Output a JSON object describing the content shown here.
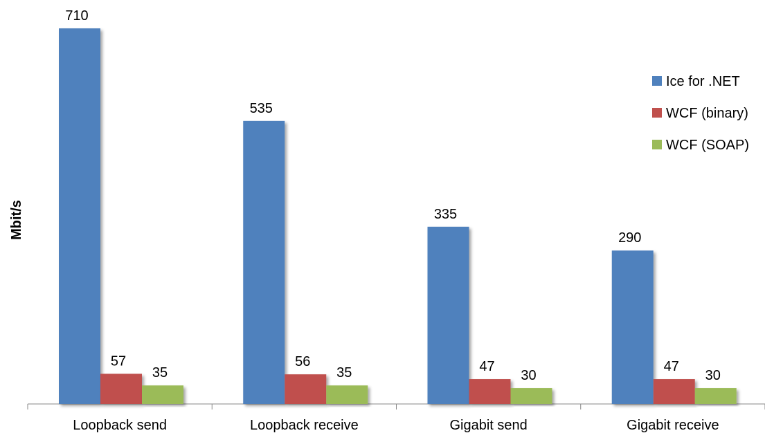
{
  "chart_data": {
    "type": "bar",
    "title": "",
    "xlabel": "",
    "ylabel": "Mbit/s",
    "ylim": [
      0,
      740
    ],
    "grid": false,
    "legend_position": "top-right",
    "categories": [
      "Loopback send",
      "Loopback receive",
      "Gigabit send",
      "Gigabit receive"
    ],
    "series": [
      {
        "name": "Ice for .NET",
        "color": "#4F81BD",
        "values": [
          710,
          535,
          335,
          290
        ]
      },
      {
        "name": "WCF (binary)",
        "color": "#C0504D",
        "values": [
          57,
          56,
          47,
          47
        ]
      },
      {
        "name": "WCF (SOAP)",
        "color": "#9BBB59",
        "values": [
          35,
          35,
          30,
          30
        ]
      }
    ]
  }
}
